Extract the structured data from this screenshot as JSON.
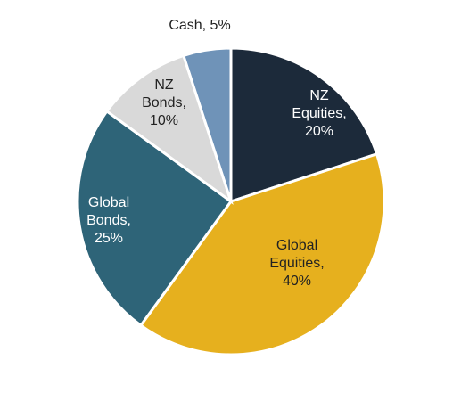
{
  "chart_data": {
    "type": "pie",
    "categories": [
      "NZ Equities, 20%",
      "Global Equities, 40%",
      "Global Bonds, 25%",
      "NZ Bonds, 10%",
      "Cash, 5%"
    ],
    "values": [
      20,
      40,
      25,
      10,
      5
    ],
    "colors": [
      "#1c2a3a",
      "#e6b01e",
      "#2e6478",
      "#d9d9d9",
      "#6f93b8"
    ]
  }
}
